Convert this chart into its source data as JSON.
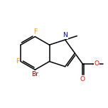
{
  "background": "#ffffff",
  "bond_color": "#000000",
  "atom_colors": {
    "N": "#0000cd",
    "O": "#ff0000",
    "F": "#ff8c00",
    "Br": "#8b0000",
    "C": "#000000"
  },
  "figsize": [
    1.52,
    1.52
  ],
  "dpi": 100,
  "lw": 1.1,
  "fs": 6.5
}
